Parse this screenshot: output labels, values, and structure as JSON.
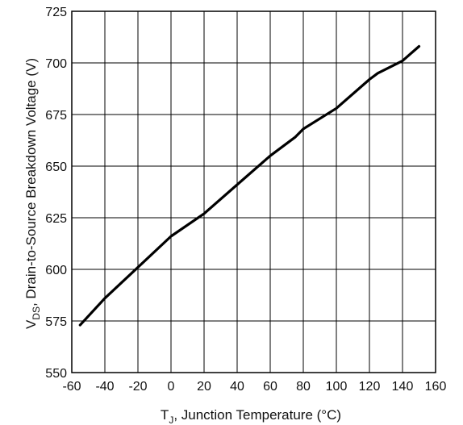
{
  "chart_data": {
    "type": "line",
    "title": "",
    "xlabel": {
      "main": "T",
      "sub": "J",
      "rest": ", Junction Temperature (°C)"
    },
    "ylabel": {
      "main": "V",
      "sub": "DS",
      "rest": ", Drain-to-Source Breakdown Voltage (V)"
    },
    "xlim": [
      -60,
      160
    ],
    "ylim": [
      550,
      725
    ],
    "xticks": [
      -60,
      -40,
      -20,
      0,
      20,
      40,
      60,
      80,
      100,
      120,
      140,
      160
    ],
    "yticks": [
      550,
      575,
      600,
      625,
      650,
      675,
      700,
      725
    ],
    "grid": true,
    "series": [
      {
        "x": [
          -55,
          -40,
          -20,
          0,
          20,
          40,
          60,
          75,
          80,
          100,
          120,
          125,
          140,
          150
        ],
        "values": [
          573,
          586,
          601,
          616,
          627,
          641,
          655,
          664,
          668,
          678,
          692,
          695,
          701,
          708
        ],
        "color": "#000000"
      }
    ]
  }
}
